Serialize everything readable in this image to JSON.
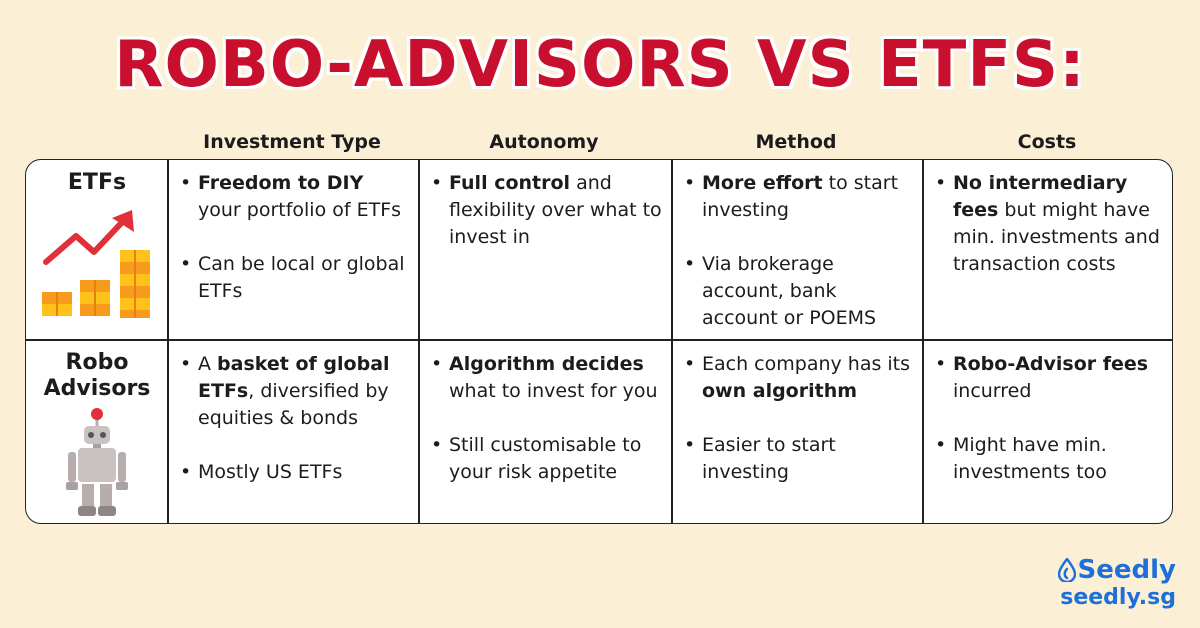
{
  "title": "ROBO-ADVISORS VS ETFS:",
  "columns": [
    "Investment Type",
    "Autonomy",
    "Method",
    "Costs"
  ],
  "rows": [
    {
      "label_line1": "ETFs",
      "label_line2": "",
      "icon": "rising-bar-chart-icon",
      "cells": [
        [
          {
            "bold": "Freedom to DIY",
            "text": " your portfolio of ETFs",
            "prefix": ""
          },
          {
            "bold": "",
            "text": "Can be local or global ETFs",
            "prefix": ""
          }
        ],
        [
          {
            "bold": "Full control",
            "text": " and flexibility over what to invest in",
            "prefix": ""
          }
        ],
        [
          {
            "bold": "More effort",
            "text": " to start investing",
            "prefix": ""
          },
          {
            "bold": "",
            "text": "Via brokerage account, bank account or POEMS",
            "prefix": ""
          }
        ],
        [
          {
            "bold": "No intermediary fees",
            "text": " but might have min. investments and transaction costs",
            "prefix": ""
          }
        ]
      ]
    },
    {
      "label_line1": "Robo",
      "label_line2": "Advisors",
      "icon": "robot-icon",
      "cells": [
        [
          {
            "prefix": "A ",
            "bold": "basket of global ETFs",
            "text": ", diversified by equities & bonds"
          },
          {
            "prefix": "",
            "bold": "",
            "text": "Mostly US ETFs"
          }
        ],
        [
          {
            "prefix": "",
            "bold": "Algorithm decides",
            "text": " what to invest for you"
          },
          {
            "prefix": "",
            "bold": "",
            "text": "Still customisable to your risk appetite"
          }
        ],
        [
          {
            "prefix": "Each company has its ",
            "bold": "own algorithm",
            "text": ""
          },
          {
            "prefix": "",
            "bold": "",
            "text": "Easier to start investing"
          }
        ],
        [
          {
            "prefix": "",
            "bold": "Robo-Advisor fees",
            "text": " incurred"
          },
          {
            "prefix": "",
            "bold": "",
            "text": "Might have min. investments too"
          }
        ]
      ]
    }
  ],
  "brand": {
    "name": "Seedly",
    "site": "seedly.sg",
    "color": "#1E6FD9"
  },
  "colors": {
    "background": "#FBF0D6",
    "title": "#C8102E"
  }
}
